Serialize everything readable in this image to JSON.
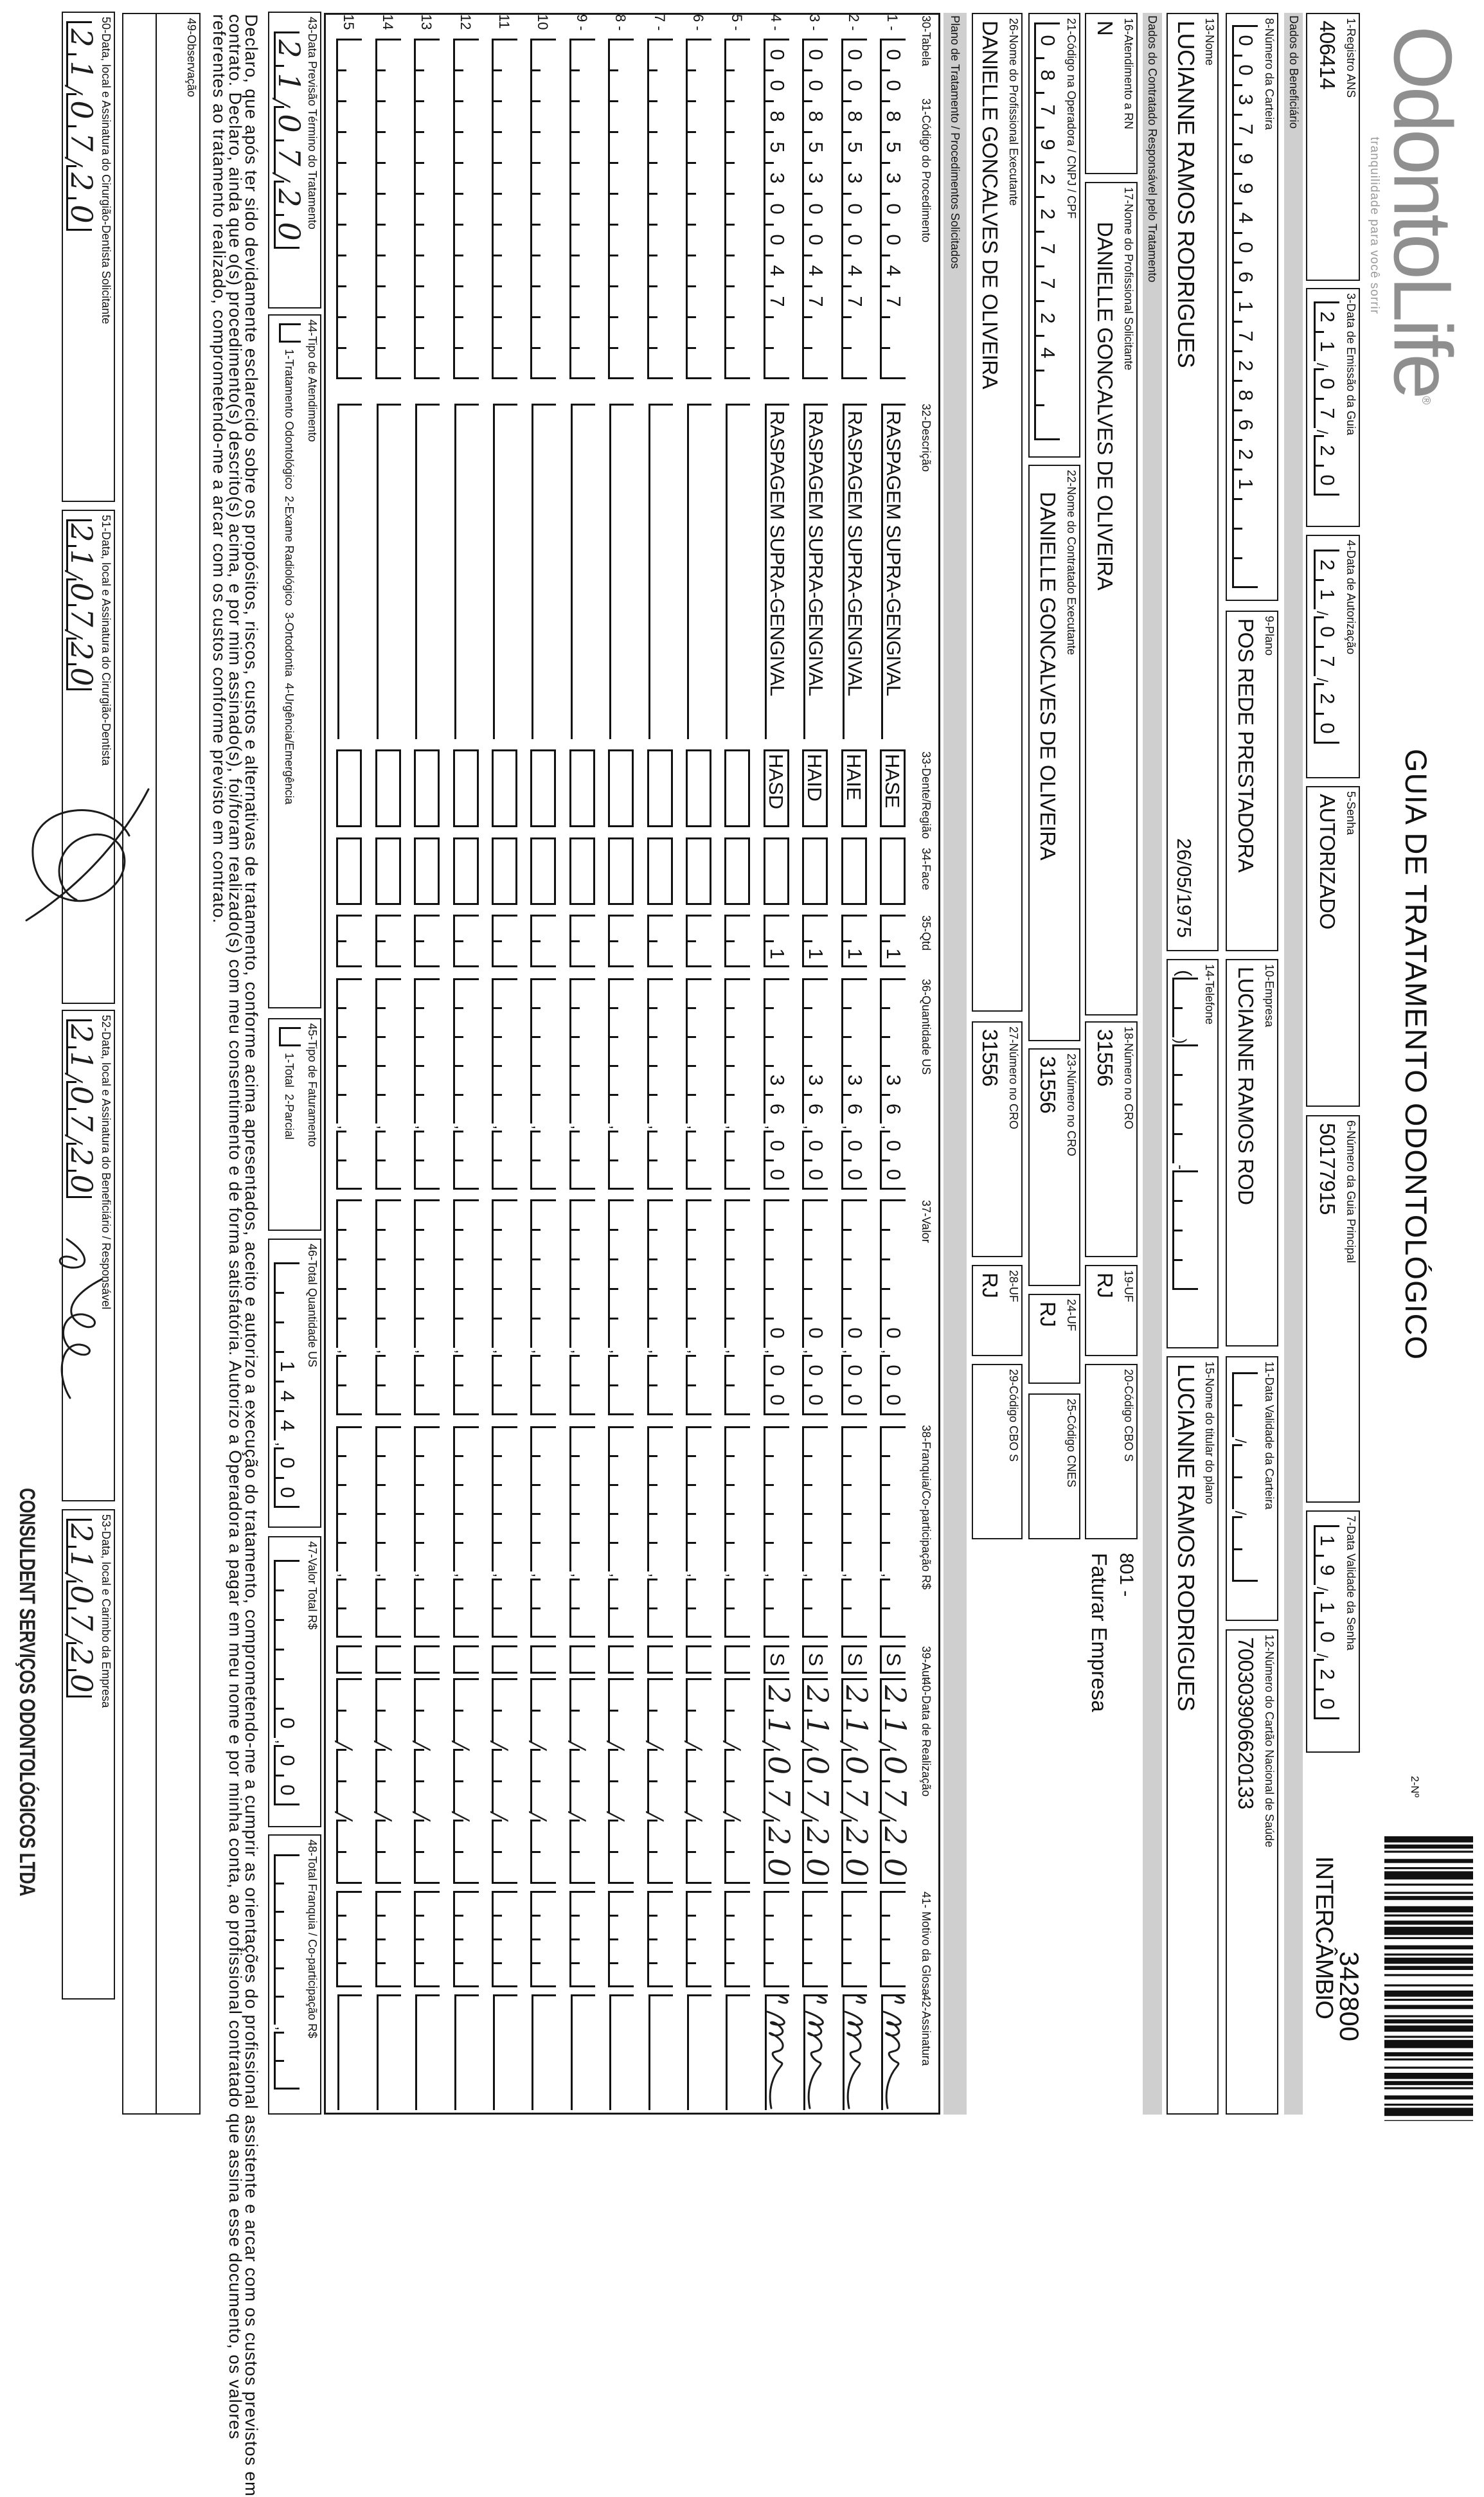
{
  "header": {
    "logo_text": "OdontoLife",
    "logo_tagline": "tranquilidade para você sorrir",
    "title": "GUIA DE TRATAMENTO ODONTOLÓGICO",
    "number_label": "2-Nº",
    "guide_number": "342800",
    "guide_type": "INTERCÂMBIO"
  },
  "sections": {
    "beneficiario": "Dados do Beneficiário",
    "contratado": "Dados do Contratado Responsável pelo Tratamento",
    "plano": "Plano de Tratamento / Procedimentos Solicitados"
  },
  "f1": {
    "label": "1-Registro ANS",
    "value": "406414"
  },
  "f3": {
    "label": "3-Data de Emissão da Guia",
    "value": "21/07/20"
  },
  "f4": {
    "label": "4-Data de Autorização",
    "value": "21/07/20"
  },
  "f5": {
    "label": "5-Senha",
    "value": "AUTORIZADO"
  },
  "f6": {
    "label": "6-Número da Guia Principal",
    "value": "50177915"
  },
  "f7": {
    "label": "7-Data Validade da Senha",
    "value": "19/10/20"
  },
  "f8": {
    "label": "8-Número da Carteira",
    "value": "0037994061728621"
  },
  "f9": {
    "label": "9-Plano",
    "value": "POS REDE PRESTADORA"
  },
  "f10": {
    "label": "10-Empresa",
    "value": "LUCIANNE RAMOS ROD"
  },
  "f11": {
    "label": "11-Data Validade da Carteira",
    "value": ""
  },
  "f12": {
    "label": "12-Número do Cartão Nacional de Saúde",
    "value": "700303906620133"
  },
  "f13": {
    "label": "13-Nome",
    "value": "LUCIANNE RAMOS RODRIGUES",
    "birth_date": "26/05/1975"
  },
  "f14": {
    "label": "14-Telefone",
    "value": ""
  },
  "f15": {
    "label": "15-Nome do titular do plano",
    "value": "LUCIANNE RAMOS RODRIGUES"
  },
  "f16": {
    "label": "16-Atendimento a RN",
    "value": "N"
  },
  "f17": {
    "label": "17-Nome do Profissional Solicitante",
    "value": "DANIELLE GONCALVES DE OLIVEIRA"
  },
  "f18": {
    "label": "18-Número no CRO",
    "value": "31556"
  },
  "f19": {
    "label": "19-UF",
    "value": "RJ"
  },
  "f20": {
    "label": "20-Código CBO S",
    "value": ""
  },
  "billing_note": {
    "code": "801 -",
    "text": "Faturar Empresa"
  },
  "f21": {
    "label": "21-Código na Operadora / CNPJ / CPF",
    "value": "0879227724"
  },
  "f22": {
    "label": "22-Nome do Contratado Executante",
    "value": "DANIELLE GONCALVES DE OLIVEIRA"
  },
  "f23": {
    "label": "23-Número no CRO",
    "value": "31556"
  },
  "f24": {
    "label": "24-UF",
    "value": "RJ"
  },
  "f25": {
    "label": "25-Código CNES",
    "value": ""
  },
  "f26": {
    "label": "26-Nome do Profissional Executante",
    "value": "DANIELLE GONCALVES DE OLIVEIRA"
  },
  "f27": {
    "label": "27-Número no CRO",
    "value": "31556"
  },
  "f28": {
    "label": "28-UF",
    "value": "RJ"
  },
  "f29": {
    "label": "29-Código CBO S",
    "value": ""
  },
  "table": {
    "headers": {
      "tabela": "30-Tabela",
      "codigo": "31-Código do Procedimento",
      "descricao": "32-Descrição",
      "dente": "33-Dente/Região",
      "face": "34-Face",
      "qtd": "35-Qtd",
      "us": "36-Quantidade US",
      "valor": "37-Valor",
      "franquia": "38-Franquia/Co-participação R$",
      "aut": "39-Aut",
      "data": "40-Data de Realização",
      "glosa": "41- Motivo da Glosa",
      "assinatura": "42-Assinatura"
    },
    "rows": [
      {
        "num": "1 -",
        "code": "008530047",
        "description": "RASPAGEM SUPRA-GENGIVAL",
        "tooth": "HASE",
        "face": "",
        "qty": "1",
        "us": "36,00",
        "value": "0,00",
        "franquia": "",
        "aut": "S",
        "date": "21/07/20",
        "glosa": "",
        "signed": true
      },
      {
        "num": "2 -",
        "code": "008530047",
        "description": "RASPAGEM SUPRA-GENGIVAL",
        "tooth": "HAIE",
        "face": "",
        "qty": "1",
        "us": "36,00",
        "value": "0,00",
        "franquia": "",
        "aut": "S",
        "date": "21/07/20",
        "glosa": "",
        "signed": true
      },
      {
        "num": "3 -",
        "code": "008530047",
        "description": "RASPAGEM SUPRA-GENGIVAL",
        "tooth": "HAID",
        "face": "",
        "qty": "1",
        "us": "36,00",
        "value": "0,00",
        "franquia": "",
        "aut": "S",
        "date": "21/07/20",
        "glosa": "",
        "signed": true
      },
      {
        "num": "4 -",
        "code": "008530047",
        "description": "RASPAGEM SUPRA-GENGIVAL",
        "tooth": "HASD",
        "face": "",
        "qty": "1",
        "us": "36,00",
        "value": "0,00",
        "franquia": "",
        "aut": "S",
        "date": "21/07/20",
        "glosa": "",
        "signed": true
      },
      {
        "num": "5 -"
      },
      {
        "num": "6 -"
      },
      {
        "num": "7 -"
      },
      {
        "num": "8 -"
      },
      {
        "num": "9 -"
      },
      {
        "num": "10"
      },
      {
        "num": "11"
      },
      {
        "num": "12"
      },
      {
        "num": "13"
      },
      {
        "num": "14"
      },
      {
        "num": "15"
      }
    ]
  },
  "f43": {
    "label": "43-Data Previsão Término do Tratamento",
    "value": "21/07/20"
  },
  "f44": {
    "label": "44-Tipo de Atendimento",
    "options": "1-Tratamento Odontológico  2-Exame Radiológico  3-Ortodontia  4-Urgência/Emergência",
    "value": ""
  },
  "f45": {
    "label": "45-Tipo de Faturamento",
    "options": "1-Total  2-Parcial",
    "value": ""
  },
  "f46": {
    "label": "46-Total Quantidade US",
    "value": "144,00"
  },
  "f47": {
    "label": "47-Valor Total R$",
    "value": "0,00"
  },
  "f48": {
    "label": "48-Total Franquia / Co-participação R$",
    "value": ""
  },
  "declaration": [
    "Declaro, que após ter sido devidamente esclarecido sobre os propósitos, riscos, custos e alternativas de tratamento, conforme acima apresentados, aceito e autorizo a execução do tratamento, comprometendo-me a cumprir as orientações do profissional assistente e arcar com os custos previstos em",
    "contrato. Declaro, ainda que o(s) procedimento(s) descrito(s) acima, e por mim assinado(s), foi/foram realizado(s) com meu consentimento e de forma satisfatória. Autorizo a Operadora a pagar em meu nome e por minha conta, ao profissional contratado que assina esse documento, os valores",
    "referentes ao tratamento realizado, comprometendo-me a arcar com os custos conforme previsto em contrato."
  ],
  "f49": {
    "label": "49-Observação",
    "value": ""
  },
  "f50": {
    "label": "50-Data, local e Assinatura do Cirurgião-Dentista Solicitante",
    "value": "21/07/20"
  },
  "f51": {
    "label": "51-Data, local e Assinatura do Cirurgião-Dentista",
    "value": "21/07/20"
  },
  "f52": {
    "label": "52-Data, local e Assinatura do Beneficiário / Responsável",
    "value": "21/07/20"
  },
  "f53": {
    "label": "53-Data, local e Carimbo da Empresa",
    "value": "21/07/20"
  },
  "stamp": {
    "name": "CONSULDENT SERVIÇOS ODONTOLÓGICOS LTDA"
  },
  "colors": {
    "ink": "#111111",
    "band": "#cfcfcf",
    "logo": "#8f8f8f",
    "handwriting": "#1d1d1d"
  }
}
